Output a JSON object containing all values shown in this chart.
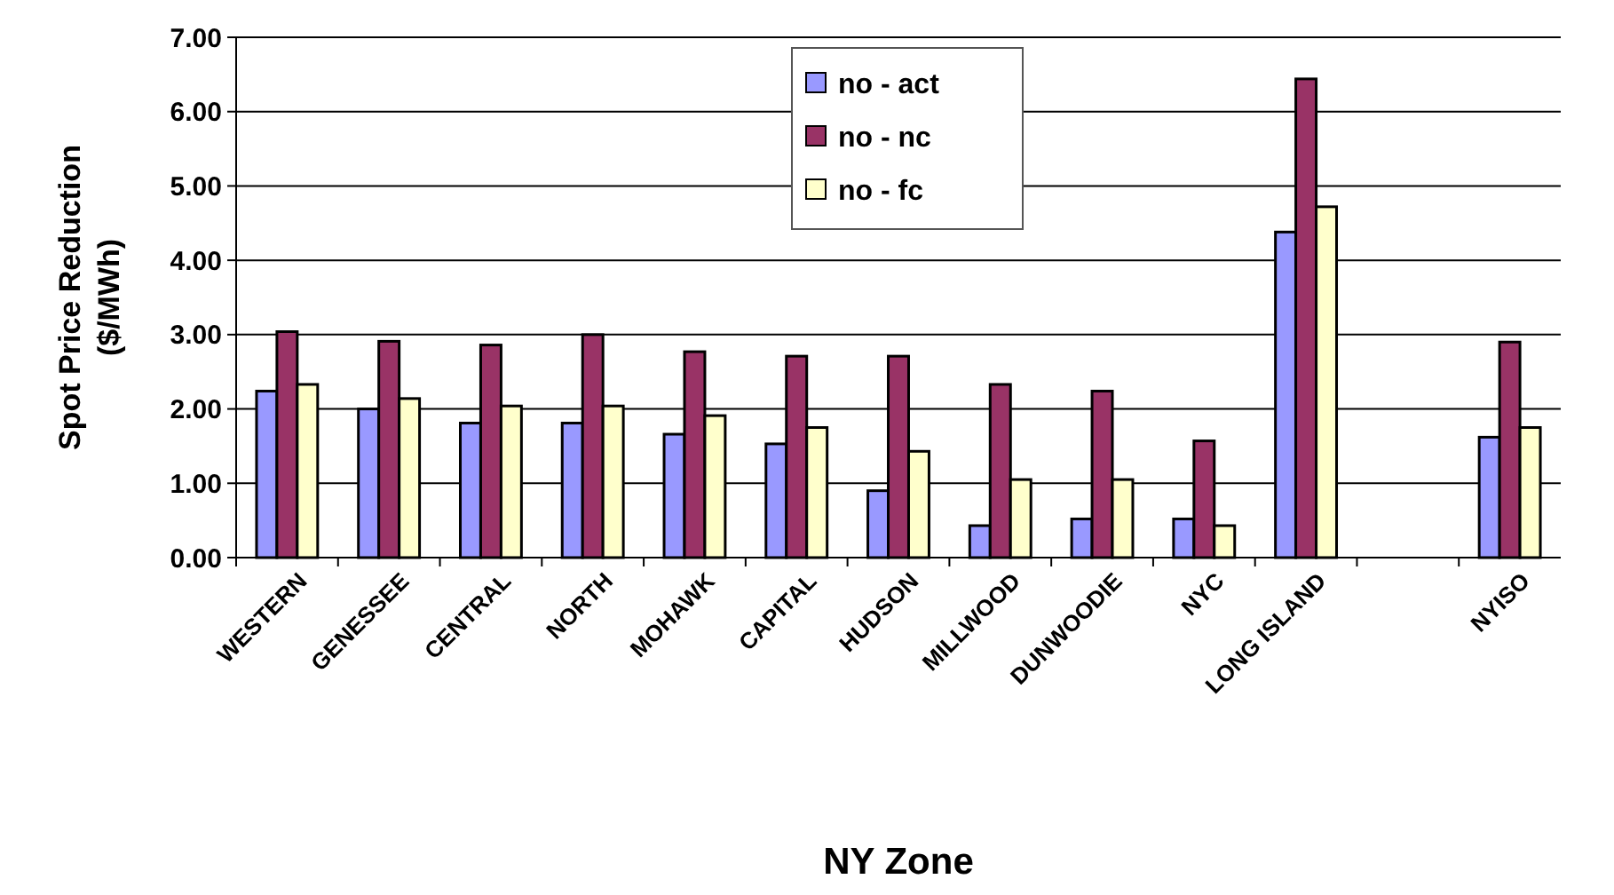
{
  "chart_data": {
    "type": "bar",
    "xlabel": "NY Zone",
    "ylabel": "Spot Price Reduction\n($/MWh)",
    "categories": [
      "WESTERN",
      "GENESSEE",
      "CENTRAL",
      "NORTH",
      "MOHAWK",
      "CAPITAL",
      "HUDSON",
      "MILLWOOD",
      "DUNWOODIE",
      "NYC",
      "LONG ISLAND",
      null,
      "NYISO"
    ],
    "series": [
      {
        "name": "no - act",
        "color": "#9999ff",
        "values": [
          2.24,
          2.0,
          1.81,
          1.81,
          1.66,
          1.53,
          0.9,
          0.43,
          0.52,
          0.52,
          4.38,
          null,
          1.62
        ]
      },
      {
        "name": "no - nc",
        "color": "#993366",
        "values": [
          3.04,
          2.91,
          2.86,
          3.0,
          2.77,
          2.71,
          2.71,
          2.33,
          2.24,
          1.57,
          6.44,
          null,
          2.9
        ]
      },
      {
        "name": "no - fc",
        "color": "#ffffcc",
        "values": [
          2.33,
          2.14,
          2.04,
          2.04,
          1.91,
          1.75,
          1.43,
          1.05,
          1.05,
          0.43,
          4.72,
          null,
          1.75
        ]
      }
    ],
    "ylim": [
      0,
      7
    ],
    "yticks": [
      {
        "value": 0,
        "label": "0.00"
      },
      {
        "value": 1,
        "label": "1.00"
      },
      {
        "value": 2,
        "label": "2.00"
      },
      {
        "value": 3,
        "label": "3.00"
      },
      {
        "value": 4,
        "label": "4.00"
      },
      {
        "value": 5,
        "label": "5.00"
      },
      {
        "value": 6,
        "label": "6.00"
      },
      {
        "value": 7,
        "label": "7.00"
      }
    ],
    "grid": "y",
    "legend": "top"
  }
}
